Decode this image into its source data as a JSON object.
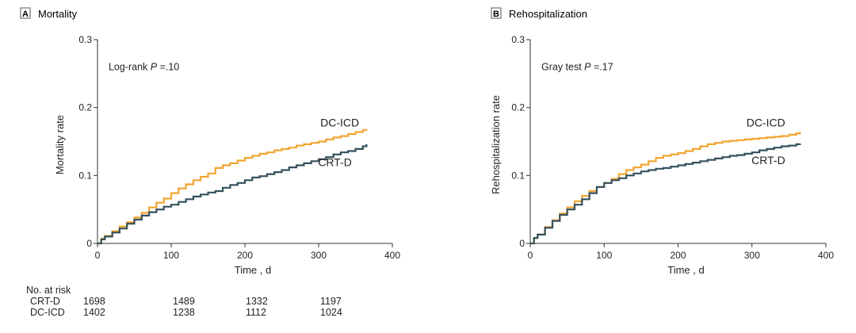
{
  "risk_table": {
    "heading": "No. at risk",
    "rows": [
      {
        "label": "CRT-D",
        "values": [
          "1698",
          "1489",
          "1332",
          "1197"
        ]
      },
      {
        "label": "DC-ICD",
        "values": [
          "1402",
          "1238",
          "1112",
          "1024"
        ]
      }
    ]
  },
  "colors": {
    "crt_d": "#34505e",
    "dc_icd": "#f2a532",
    "axis": "#333333"
  },
  "chart_data": [
    {
      "type": "line",
      "panel_tag": "A",
      "title": "Mortality",
      "xlabel": "Time , d",
      "ylabel": "Mortality rate",
      "xlim": [
        0,
        400
      ],
      "ylim": [
        0,
        0.3
      ],
      "xticks": [
        0,
        100,
        200,
        300,
        400
      ],
      "yticks": [
        0,
        0.1,
        0.2,
        0.3
      ],
      "ytick_labels": [
        "0",
        "0.1",
        "0.2",
        "0.3"
      ],
      "annotation": {
        "prefix": "Log-rank ",
        "p": "P",
        "suffix": " =.10"
      },
      "series": [
        {
          "name": "DC-ICD",
          "key": "dc_icd",
          "x": [
            0,
            5,
            10,
            20,
            30,
            40,
            50,
            60,
            70,
            80,
            90,
            100,
            110,
            120,
            130,
            140,
            150,
            160,
            170,
            180,
            190,
            200,
            210,
            220,
            230,
            240,
            250,
            260,
            270,
            280,
            290,
            300,
            310,
            320,
            330,
            340,
            350,
            360,
            365
          ],
          "y": [
            0,
            0.007,
            0.011,
            0.018,
            0.025,
            0.031,
            0.038,
            0.045,
            0.053,
            0.06,
            0.066,
            0.074,
            0.081,
            0.087,
            0.093,
            0.098,
            0.103,
            0.111,
            0.115,
            0.118,
            0.122,
            0.126,
            0.129,
            0.132,
            0.134,
            0.137,
            0.139,
            0.141,
            0.144,
            0.146,
            0.148,
            0.15,
            0.153,
            0.156,
            0.158,
            0.161,
            0.164,
            0.167,
            0.168
          ]
        },
        {
          "name": "CRT-D",
          "key": "crt_d",
          "x": [
            0,
            5,
            10,
            20,
            30,
            40,
            50,
            60,
            70,
            80,
            90,
            100,
            110,
            120,
            130,
            140,
            150,
            160,
            170,
            180,
            190,
            200,
            210,
            220,
            230,
            240,
            250,
            260,
            270,
            280,
            290,
            300,
            310,
            320,
            330,
            340,
            350,
            360,
            365
          ],
          "y": [
            0,
            0.006,
            0.01,
            0.016,
            0.022,
            0.029,
            0.035,
            0.041,
            0.046,
            0.05,
            0.054,
            0.057,
            0.061,
            0.065,
            0.069,
            0.072,
            0.075,
            0.077,
            0.082,
            0.086,
            0.089,
            0.093,
            0.097,
            0.099,
            0.102,
            0.105,
            0.108,
            0.112,
            0.115,
            0.118,
            0.121,
            0.124,
            0.127,
            0.131,
            0.134,
            0.136,
            0.139,
            0.143,
            0.146
          ]
        }
      ],
      "labels": [
        {
          "text": "DC-ICD",
          "x": 355,
          "y": 0.172
        },
        {
          "text": "CRT-D",
          "x": 345,
          "y": 0.114
        }
      ]
    },
    {
      "type": "line",
      "panel_tag": "B",
      "title": "Rehospitalization",
      "xlabel": "Time , d",
      "ylabel": "Rehospitalization rate",
      "xlim": [
        0,
        400
      ],
      "ylim": [
        0,
        0.3
      ],
      "xticks": [
        0,
        100,
        200,
        300,
        400
      ],
      "yticks": [
        0,
        0.1,
        0.2,
        0.3
      ],
      "ytick_labels": [
        "0",
        "0.1",
        "0.2",
        "0.3"
      ],
      "annotation": {
        "prefix": "Gray test ",
        "p": "P",
        "suffix": " =.17"
      },
      "series": [
        {
          "name": "DC-ICD",
          "key": "dc_icd",
          "x": [
            0,
            5,
            10,
            20,
            30,
            40,
            50,
            60,
            70,
            80,
            90,
            100,
            110,
            120,
            130,
            140,
            150,
            160,
            170,
            180,
            190,
            200,
            210,
            220,
            230,
            240,
            250,
            260,
            270,
            280,
            290,
            300,
            310,
            320,
            330,
            340,
            350,
            360,
            365
          ],
          "y": [
            0,
            0.008,
            0.013,
            0.024,
            0.034,
            0.044,
            0.053,
            0.062,
            0.07,
            0.077,
            0.083,
            0.089,
            0.095,
            0.102,
            0.108,
            0.112,
            0.116,
            0.121,
            0.126,
            0.129,
            0.131,
            0.133,
            0.136,
            0.139,
            0.143,
            0.146,
            0.148,
            0.15,
            0.151,
            0.152,
            0.153,
            0.154,
            0.155,
            0.156,
            0.157,
            0.158,
            0.16,
            0.162,
            0.164
          ]
        },
        {
          "name": "CRT-D",
          "key": "crt_d",
          "x": [
            0,
            5,
            10,
            20,
            30,
            40,
            50,
            60,
            70,
            80,
            90,
            100,
            110,
            120,
            130,
            140,
            150,
            160,
            170,
            180,
            190,
            200,
            210,
            220,
            230,
            240,
            250,
            260,
            270,
            280,
            290,
            300,
            310,
            320,
            330,
            340,
            350,
            360,
            365
          ],
          "y": [
            0,
            0.008,
            0.013,
            0.023,
            0.033,
            0.042,
            0.05,
            0.057,
            0.065,
            0.074,
            0.083,
            0.089,
            0.093,
            0.096,
            0.1,
            0.103,
            0.106,
            0.108,
            0.11,
            0.111,
            0.113,
            0.115,
            0.117,
            0.119,
            0.121,
            0.123,
            0.125,
            0.127,
            0.129,
            0.13,
            0.132,
            0.134,
            0.137,
            0.139,
            0.141,
            0.143,
            0.144,
            0.146,
            0.147
          ]
        }
      ],
      "labels": [
        {
          "text": "DC-ICD",
          "x": 345,
          "y": 0.172
        },
        {
          "text": "CRT-D",
          "x": 345,
          "y": 0.117
        }
      ]
    }
  ]
}
